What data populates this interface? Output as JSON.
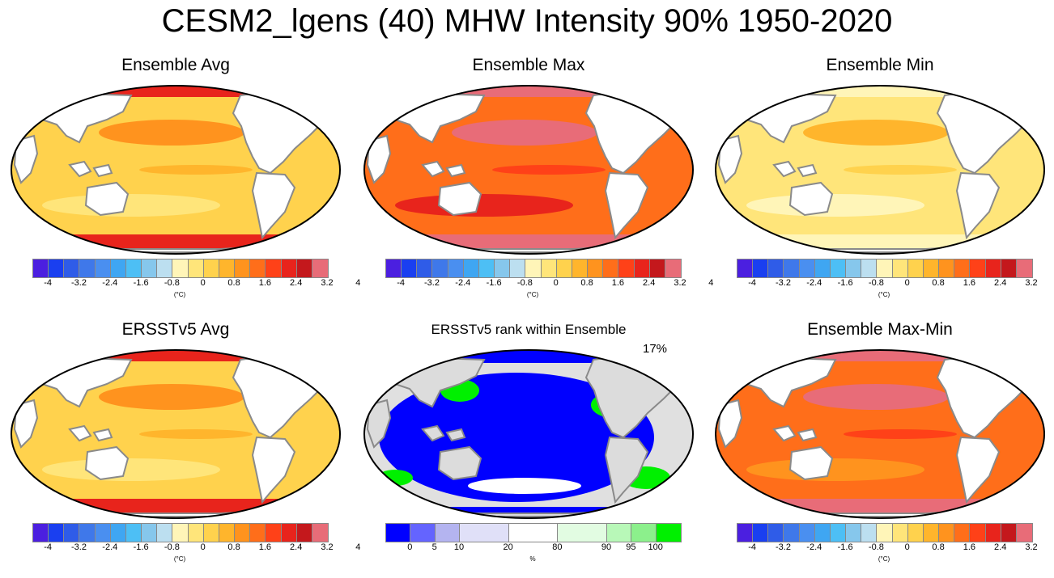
{
  "figure": {
    "title": "CESM2_lgens (40) MHW Intensity 90% 1950-2020"
  },
  "panels": [
    {
      "title": "Ensemble Avg",
      "palette": "avg"
    },
    {
      "title": "Ensemble Max",
      "palette": "max"
    },
    {
      "title": "Ensemble Min",
      "palette": "min"
    },
    {
      "title": "ERSSTv5 Avg",
      "palette": "avg"
    },
    {
      "title": "ERSSTv5 rank within Ensemble",
      "palette": "rank",
      "percent_label": "17%"
    },
    {
      "title": "Ensemble Max-Min",
      "palette": "maxmin"
    }
  ],
  "temp_colorbar": {
    "colors": [
      "#4b1fe0",
      "#1a3ff0",
      "#2f5ce8",
      "#3f78ea",
      "#4a8ff0",
      "#3fa6f2",
      "#4dbff5",
      "#86c7ec",
      "#bcdff0",
      "#fff5b8",
      "#ffe57a",
      "#ffd24d",
      "#ffb52c",
      "#ff931e",
      "#ff6e1a",
      "#ff4118",
      "#e8241c",
      "#c4181c",
      "#e86c78"
    ],
    "tick_labels": [
      "-4",
      "-3.2",
      "-2.4",
      "-1.6",
      "-0.8",
      "0",
      "0.8",
      "1.6",
      "2.4",
      "3.2",
      "4"
    ],
    "unit": "(°C)"
  },
  "rank_colorbar": {
    "colors": [
      "#0000ff",
      "#6464ff",
      "#b4b4f0",
      "#e0e0f8",
      "#ffffff",
      "#e2fce2",
      "#b8f8b8",
      "#8cf08c",
      "#00f000"
    ],
    "tick_labels": [
      "0",
      "5",
      "10",
      "20",
      "80",
      "90",
      "95",
      "100"
    ],
    "unit": "%"
  }
}
